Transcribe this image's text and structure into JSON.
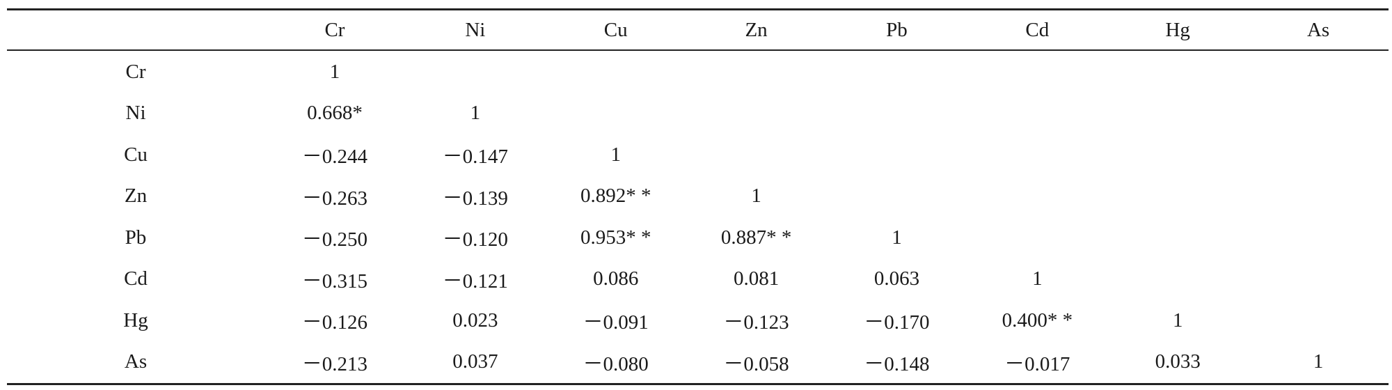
{
  "table": {
    "corner": "",
    "columns": [
      "Cr",
      "Ni",
      "Cu",
      "Zn",
      "Pb",
      "Cd",
      "Hg",
      "As"
    ],
    "rows": [
      {
        "label": "Cr",
        "cells": [
          "1",
          "",
          "",
          "",
          "",
          "",
          "",
          ""
        ]
      },
      {
        "label": "Ni",
        "cells": [
          "0.668*",
          "1",
          "",
          "",
          "",
          "",
          "",
          ""
        ]
      },
      {
        "label": "Cu",
        "cells": [
          "－0.244",
          "－0.147",
          "1",
          "",
          "",
          "",
          "",
          ""
        ]
      },
      {
        "label": "Zn",
        "cells": [
          "－0.263",
          "－0.139",
          "0.892* *",
          "1",
          "",
          "",
          "",
          ""
        ]
      },
      {
        "label": "Pb",
        "cells": [
          "－0.250",
          "－0.120",
          "0.953* *",
          "0.887* *",
          "1",
          "",
          "",
          ""
        ]
      },
      {
        "label": "Cd",
        "cells": [
          "－0.315",
          "－0.121",
          "0.086",
          "0.081",
          "0.063",
          "1",
          "",
          ""
        ]
      },
      {
        "label": "Hg",
        "cells": [
          "－0.126",
          "0.023",
          "－0.091",
          "－0.123",
          "－0.170",
          "0.400* *",
          "1",
          ""
        ]
      },
      {
        "label": "As",
        "cells": [
          "－0.213",
          "0.037",
          "－0.080",
          "－0.058",
          "－0.148",
          "－0.017",
          "0.033",
          "1"
        ]
      }
    ]
  }
}
